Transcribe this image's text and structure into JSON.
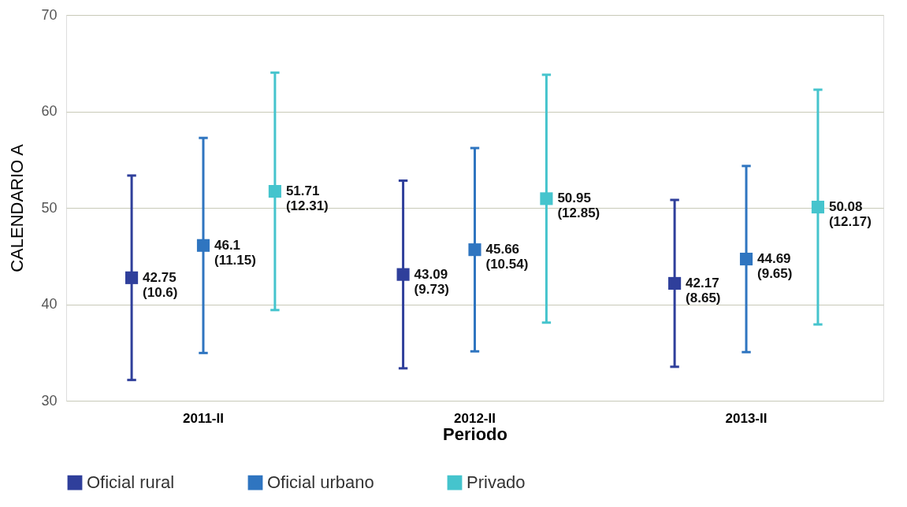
{
  "chart_data": {
    "type": "scatter",
    "xlabel": "Periodo",
    "ylabel": "CALENDARIO A",
    "categories": [
      "2011-II",
      "2012-II",
      "2013-II"
    ],
    "series": [
      {
        "name": "Oficial rural",
        "color": "#2f3f9b",
        "values": [
          42.75,
          43.09,
          42.17
        ],
        "errors": [
          10.6,
          9.73,
          8.65
        ],
        "value_labels": [
          "42.75\n(10.6)",
          "43.09\n(9.73)",
          "42.17\n(8.65)"
        ]
      },
      {
        "name": "Oficial urbano",
        "color": "#2f75c0",
        "values": [
          46.1,
          45.66,
          44.69
        ],
        "errors": [
          11.15,
          10.54,
          9.65
        ],
        "value_labels": [
          "46.1\n(11.15)",
          "45.66\n(10.54)",
          "44.69\n(9.65)"
        ]
      },
      {
        "name": "Privado",
        "color": "#45c4cd",
        "values": [
          51.71,
          50.95,
          50.08
        ],
        "errors": [
          12.31,
          12.85,
          12.17
        ],
        "value_labels": [
          "51.71\n(12.31)",
          "50.95\n(12.85)",
          "50.08\n(12.17)"
        ]
      }
    ],
    "ylim": [
      30,
      70
    ],
    "yticks": [
      30,
      40,
      50,
      60,
      70
    ],
    "grid": "y",
    "legend": "bottom",
    "marker": "square"
  }
}
